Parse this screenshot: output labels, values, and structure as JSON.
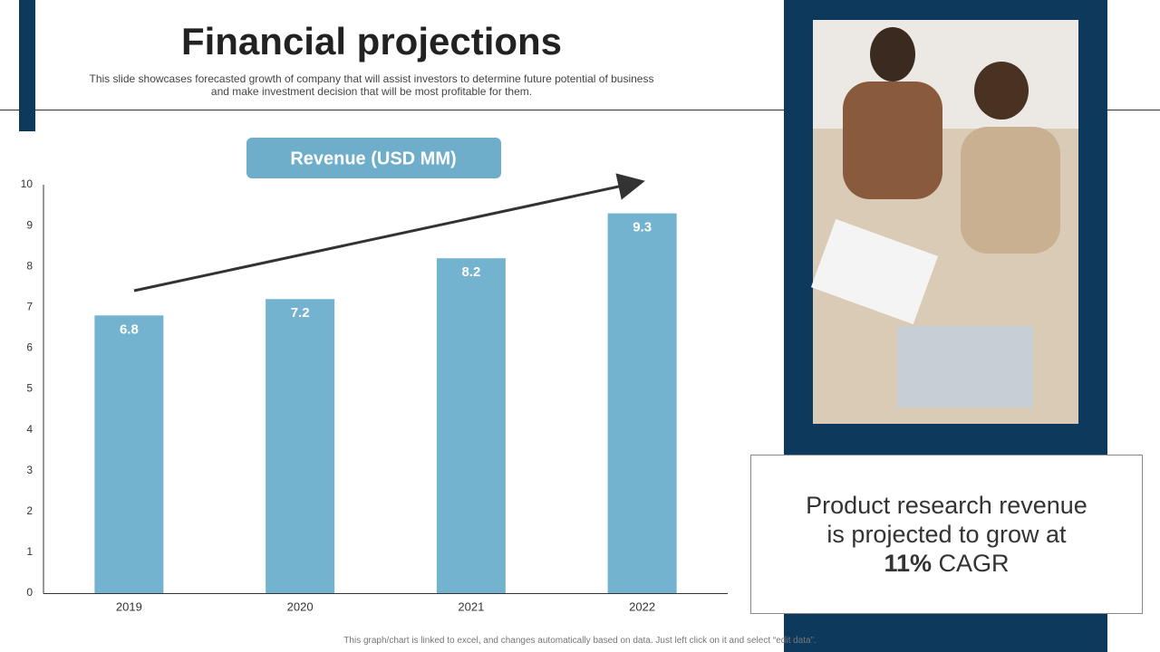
{
  "title": "Financial projections",
  "subtitle": "This slide showcases forecasted growth of company that will assist investors to determine future potential of business and make investment decision that will be most profitable for them.",
  "chart_data": {
    "type": "bar",
    "title": "Revenue (USD MM)",
    "categories": [
      "2019",
      "2020",
      "2021",
      "2022"
    ],
    "values": [
      6.8,
      7.2,
      8.2,
      9.3
    ],
    "color": "#74b3cf",
    "ylim": [
      0,
      10
    ],
    "yticks": [
      0,
      1,
      2,
      3,
      4,
      5,
      6,
      7,
      8,
      9,
      10
    ],
    "grid": false
  },
  "callout": {
    "text": "Product research revenue is projected to grow at",
    "highlight": "11%",
    "suffix": "CAGR"
  },
  "footnote": "This graph/chart is linked to excel, and changes automatically based on data. Just left click on it and select “edit data”."
}
